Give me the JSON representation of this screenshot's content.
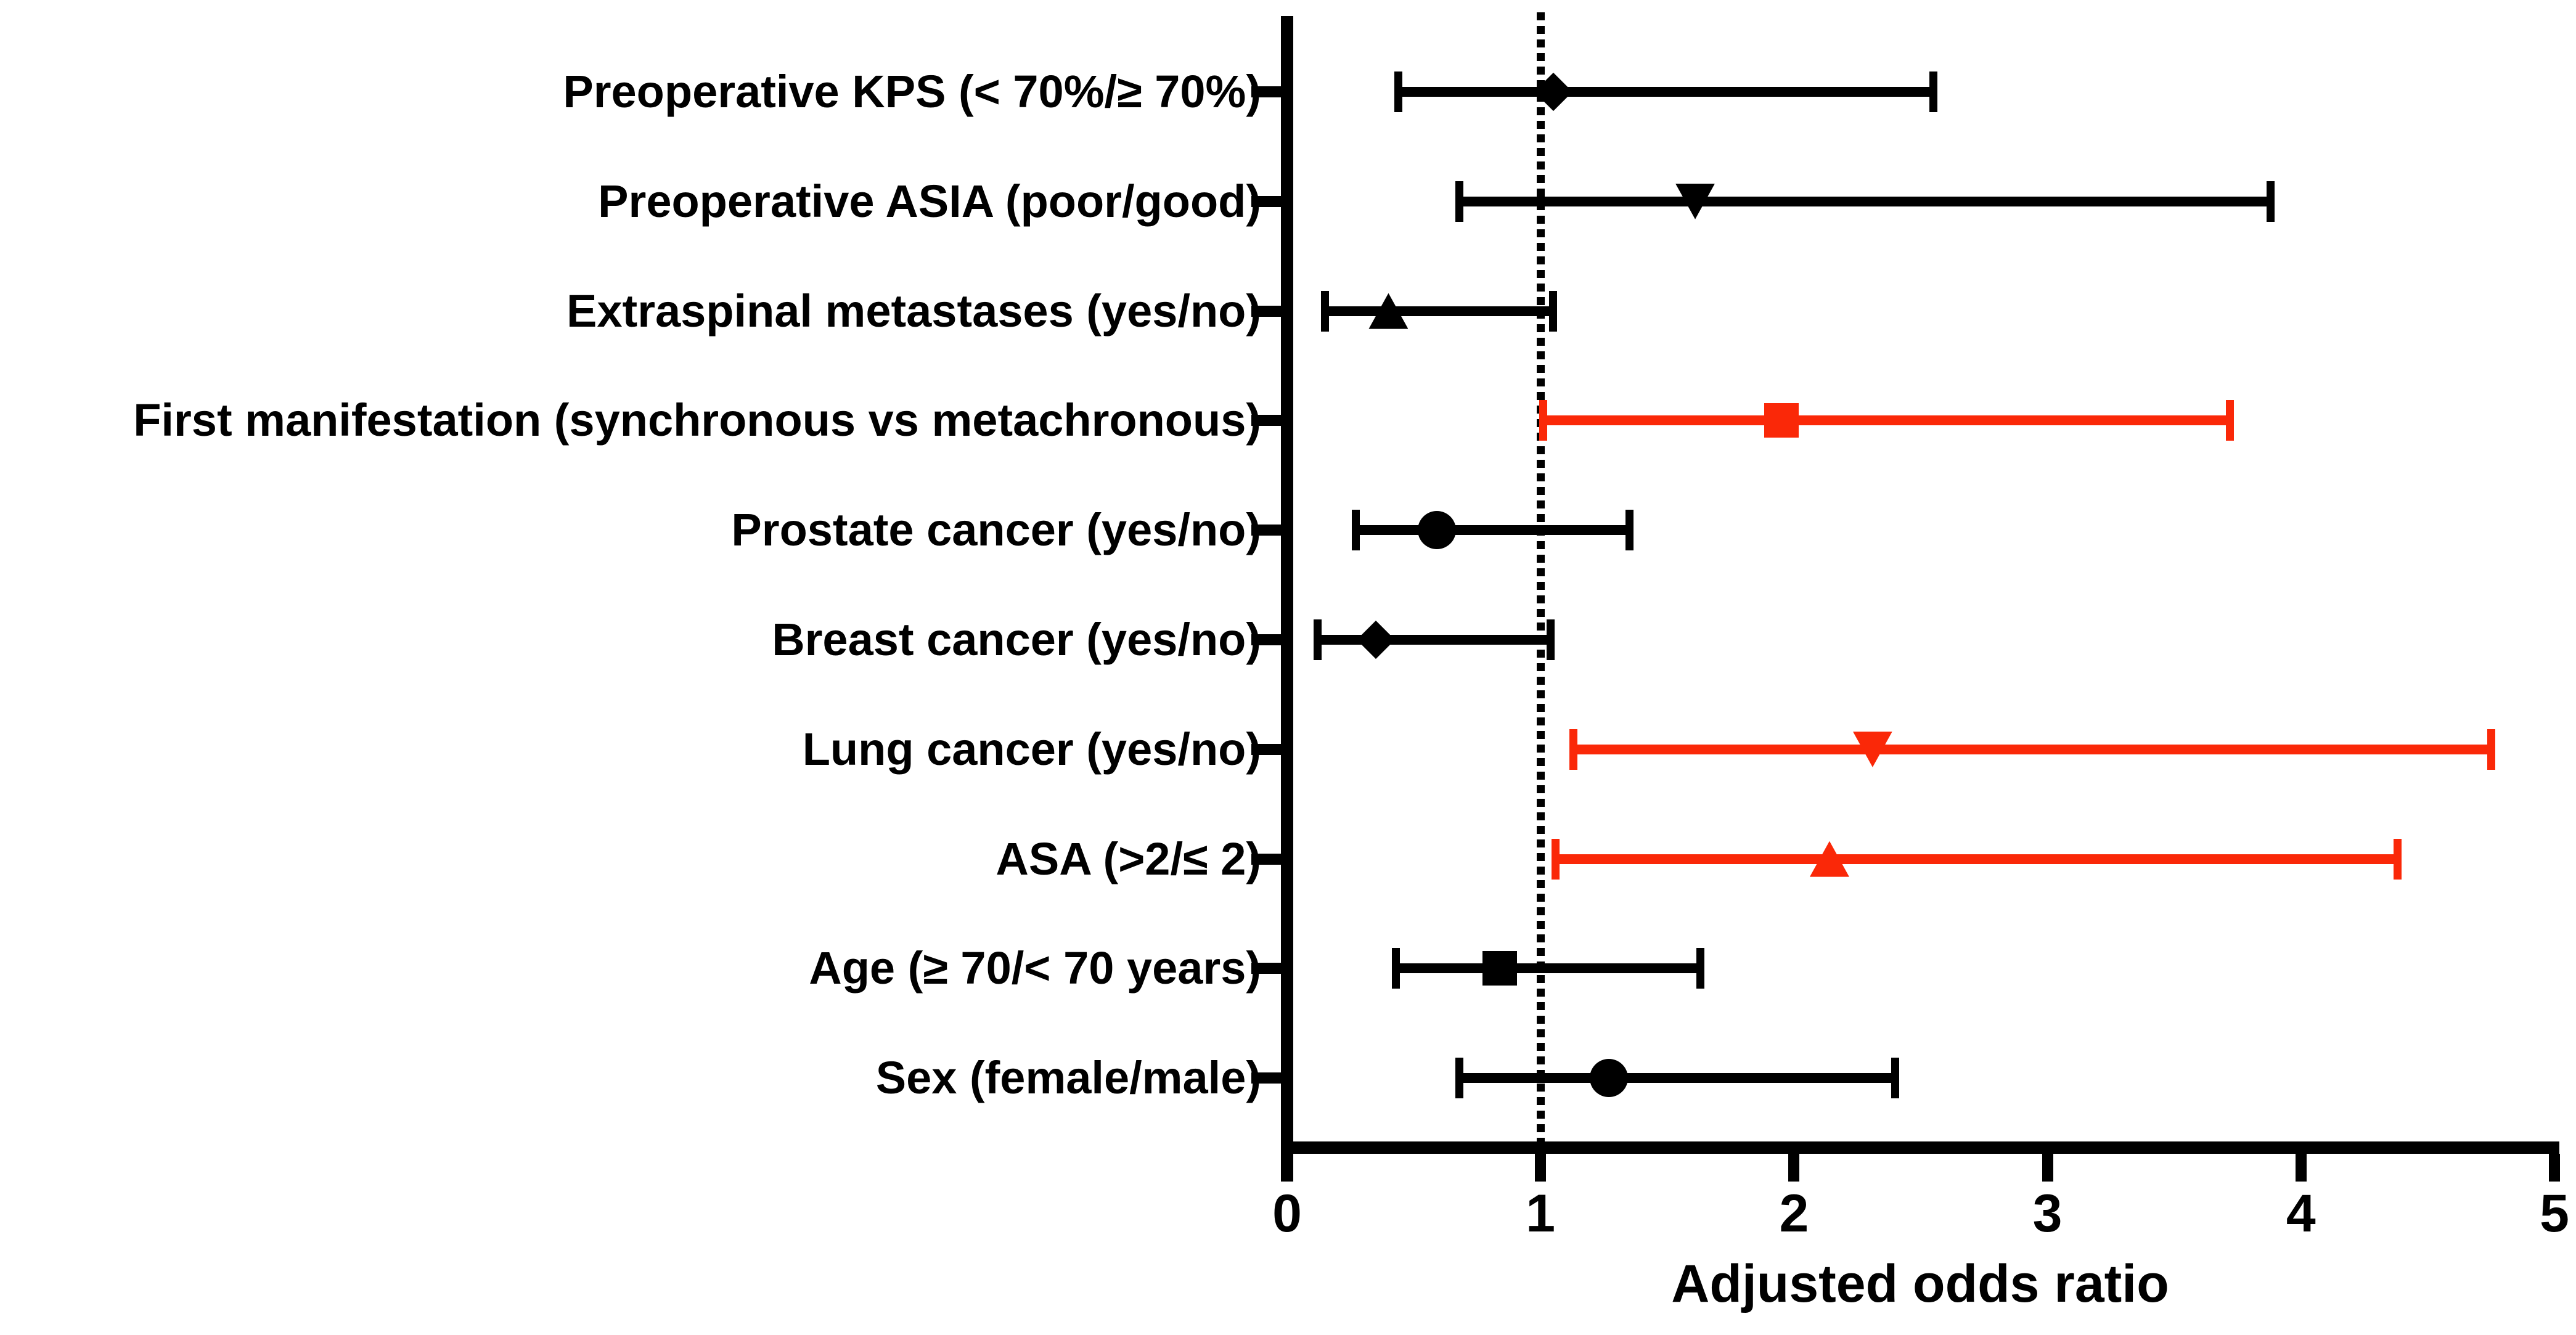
{
  "figure": {
    "background": "#FFFFFF"
  },
  "chart_data": {
    "type": "scatter",
    "variant": "forest_plot",
    "title": "",
    "xlabel": "Adjusted odds ratio",
    "ylabel": "",
    "xlim": [
      0,
      5
    ],
    "xticks": [
      "0",
      "1",
      "2",
      "3",
      "4",
      "5"
    ],
    "grid": false,
    "legend": "none",
    "reference_line": {
      "x": 1,
      "style": "dotted",
      "color": "#000000"
    },
    "colors": {
      "default": "#000000",
      "significant": "#FA2808"
    },
    "rows": [
      {
        "label": "Preoperative KPS (< 70%/≥ 70%)",
        "marker": "diamond",
        "color": "#000000",
        "or": 1.05,
        "ci_low": 0.44,
        "ci_high": 2.55
      },
      {
        "label": "Preoperative ASIA (poor/good)",
        "marker": "triangle-down",
        "color": "#000000",
        "or": 1.61,
        "ci_low": 0.68,
        "ci_high": 3.88
      },
      {
        "label": "Extraspinal metastases (yes/no)",
        "marker": "triangle-up",
        "color": "#000000",
        "or": 0.4,
        "ci_low": 0.15,
        "ci_high": 1.05
      },
      {
        "label": "First manifestation (synchronous vs metachronous)",
        "marker": "square",
        "color": "#FA2808",
        "or": 1.95,
        "ci_low": 1.01,
        "ci_high": 3.72
      },
      {
        "label": "Prostate cancer (yes/no)",
        "marker": "circle",
        "color": "#000000",
        "or": 0.59,
        "ci_low": 0.27,
        "ci_high": 1.35
      },
      {
        "label": "Breast cancer (yes/no)",
        "marker": "diamond",
        "color": "#000000",
        "or": 0.35,
        "ci_low": 0.12,
        "ci_high": 1.04
      },
      {
        "label": "Lung cancer (yes/no)",
        "marker": "triangle-down",
        "color": "#FA2808",
        "or": 2.31,
        "ci_low": 1.13,
        "ci_high": 4.75
      },
      {
        "label": "ASA (>2/≤ 2)",
        "marker": "triangle-up",
        "color": "#FA2808",
        "or": 2.14,
        "ci_low": 1.06,
        "ci_high": 4.38
      },
      {
        "label": "Age (≥ 70/< 70 years)",
        "marker": "square",
        "color": "#000000",
        "or": 0.84,
        "ci_low": 0.43,
        "ci_high": 1.63
      },
      {
        "label": "Sex (female/male)",
        "marker": "circle",
        "color": "#000000",
        "or": 1.27,
        "ci_low": 0.68,
        "ci_high": 2.4
      }
    ]
  }
}
